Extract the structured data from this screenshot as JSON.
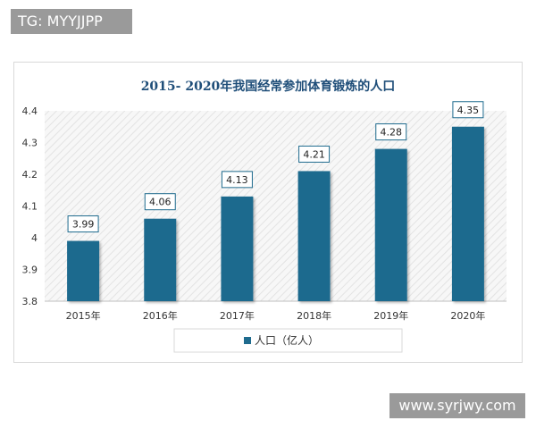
{
  "header": {
    "tag_text": "TG: MYYJJPP"
  },
  "footer": {
    "watermark_text": "www.syrjwy.com"
  },
  "colors": {
    "bar": "#1f6b8e",
    "title": "#1f4e79",
    "border": "#d9d9d9"
  },
  "chart_data": {
    "type": "bar",
    "title": "2015- 2020年我国经常参加体育锻炼的人口",
    "categories": [
      "2015年",
      "2016年",
      "2017年",
      "2018年",
      "2019年",
      "2020年"
    ],
    "series": [
      {
        "name": "人口（亿人）",
        "values": [
          3.99,
          4.06,
          4.13,
          4.21,
          4.28,
          4.35
        ]
      }
    ],
    "value_labels": [
      "3.99",
      "4.06",
      "4.13",
      "4.21",
      "4.28",
      "4.35"
    ],
    "y_ticks": [
      "3.8",
      "3.9",
      "4",
      "4.1",
      "4.2",
      "4.3",
      "4.4"
    ],
    "ylim": [
      3.8,
      4.4
    ],
    "legend": "bottom",
    "grid": false
  }
}
